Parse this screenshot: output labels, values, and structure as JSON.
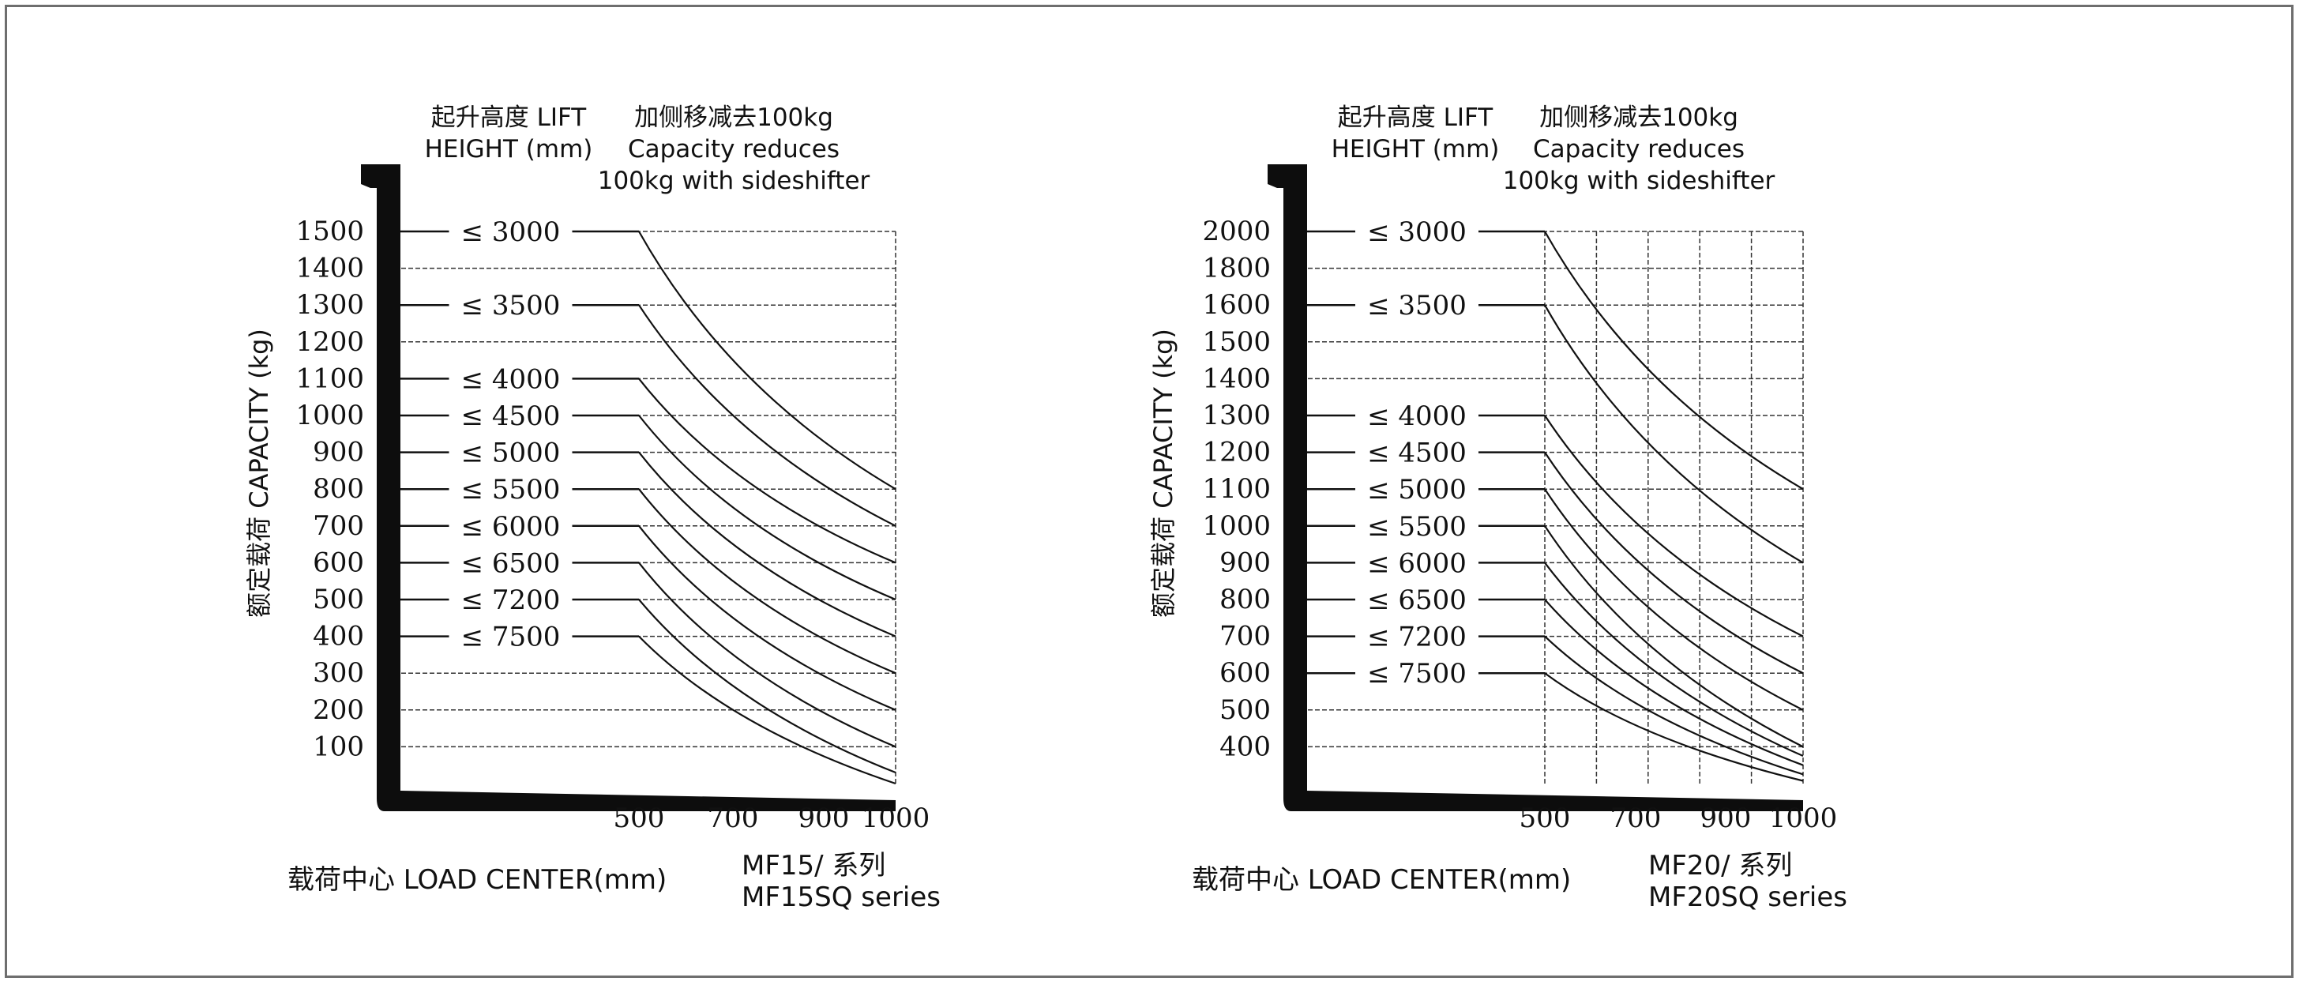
{
  "chart_data": [
    {
      "type": "line",
      "header_lift": [
        "起升高度 LIFT",
        "HEIGHT (mm)"
      ],
      "header_note": [
        "加侧移减去100kg",
        "Capacity reduces",
        "100kg with sideshifter"
      ],
      "ylabel": "额定载荷 CAPACITY (kg)",
      "xlabel": "载荷中心   LOAD CENTER(mm)",
      "series_caption": [
        "MF15/    系列",
        "MF15SQ series"
      ],
      "yticks": [
        1500,
        1400,
        1300,
        1200,
        1100,
        1000,
        900,
        800,
        700,
        600,
        500,
        400,
        300,
        200,
        100
      ],
      "ytick_labels": [
        "1500",
        "1400",
        "1300",
        "1200",
        "1100",
        "1000",
        "900",
        "800",
        "700",
        "600",
        "500",
        "400",
        "300",
        "200",
        "100"
      ],
      "xticks": [
        500,
        700,
        900,
        1000
      ],
      "xtick_labels": [
        "500",
        "700",
        "900",
        "1000"
      ],
      "ylim": [
        0,
        1500
      ],
      "xlim": [
        500,
        1000
      ],
      "vgrid_x": [
        1000
      ],
      "series": [
        {
          "name": "≤ 3000",
          "points": [
            [
              500,
              1500
            ],
            [
              1000,
              800
            ]
          ]
        },
        {
          "name": "≤ 3500",
          "points": [
            [
              500,
              1300
            ],
            [
              1000,
              700
            ]
          ]
        },
        {
          "name": "≤ 4000",
          "points": [
            [
              500,
              1100
            ],
            [
              1000,
              600
            ]
          ]
        },
        {
          "name": "≤ 4500",
          "points": [
            [
              500,
              1000
            ],
            [
              1000,
              500
            ]
          ]
        },
        {
          "name": "≤ 5000",
          "points": [
            [
              500,
              900
            ],
            [
              1000,
              400
            ]
          ]
        },
        {
          "name": "≤ 5500",
          "points": [
            [
              500,
              800
            ],
            [
              1000,
              300
            ]
          ]
        },
        {
          "name": "≤ 6000",
          "points": [
            [
              500,
              700
            ],
            [
              1000,
              200
            ]
          ]
        },
        {
          "name": "≤ 6500",
          "points": [
            [
              500,
              600
            ],
            [
              1000,
              100
            ]
          ]
        },
        {
          "name": "≤ 7200",
          "points": [
            [
              500,
              500
            ],
            [
              1000,
              30
            ]
          ]
        },
        {
          "name": "≤ 7500",
          "points": [
            [
              500,
              400
            ],
            [
              1000,
              0
            ]
          ]
        }
      ]
    },
    {
      "type": "line",
      "header_lift": [
        "起升高度 LIFT",
        "HEIGHT (mm)"
      ],
      "header_note": [
        "加侧移减去100kg",
        "Capacity reduces",
        "100kg with sideshifter"
      ],
      "ylabel": "额定载荷 CAPACITY (kg)",
      "xlabel": "载荷中心   LOAD CENTER(mm)",
      "series_caption": [
        "MF20/    系列",
        "MF20SQ series"
      ],
      "yticks": [
        2000,
        1800,
        1600,
        1500,
        1400,
        1300,
        1200,
        1100,
        1000,
        900,
        800,
        700,
        600,
        500,
        400
      ],
      "ytick_labels": [
        "2000",
        "1800",
        "1600",
        "1500",
        "1400",
        "1300",
        "1200",
        "1100",
        "1000",
        "900",
        "800",
        "700",
        "600",
        "500",
        "400"
      ],
      "xticks": [
        500,
        700,
        900,
        1000
      ],
      "xtick_labels": [
        "500",
        "700",
        "900",
        "1000"
      ],
      "ylim": [
        0,
        2000
      ],
      "xlim": [
        500,
        1000
      ],
      "vgrid_x": [
        500,
        600,
        700,
        800,
        900,
        1000
      ],
      "series": [
        {
          "name": "≤ 3000",
          "points": [
            [
              500,
              2000
            ],
            [
              1000,
              1100
            ]
          ]
        },
        {
          "name": "≤ 3500",
          "points": [
            [
              500,
              1600
            ],
            [
              1000,
              900
            ]
          ]
        },
        {
          "name": "≤ 4000",
          "points": [
            [
              500,
              1300
            ],
            [
              1000,
              700
            ]
          ]
        },
        {
          "name": "≤ 4500",
          "points": [
            [
              500,
              1200
            ],
            [
              1000,
              600
            ]
          ]
        },
        {
          "name": "≤ 5000",
          "points": [
            [
              500,
              1100
            ],
            [
              1000,
              500
            ]
          ]
        },
        {
          "name": "≤ 5500",
          "points": [
            [
              500,
              1000
            ],
            [
              1000,
              400
            ]
          ]
        },
        {
          "name": "≤ 6000",
          "points": [
            [
              500,
              900
            ],
            [
              1000,
              300
            ]
          ]
        },
        {
          "name": "≤ 6500",
          "points": [
            [
              500,
              800
            ],
            [
              1000,
              200
            ]
          ]
        },
        {
          "name": "≤ 7200",
          "points": [
            [
              500,
              700
            ],
            [
              1000,
              100
            ]
          ]
        },
        {
          "name": "≤ 7500",
          "points": [
            [
              500,
              600
            ],
            [
              1000,
              30
            ]
          ]
        }
      ]
    }
  ]
}
